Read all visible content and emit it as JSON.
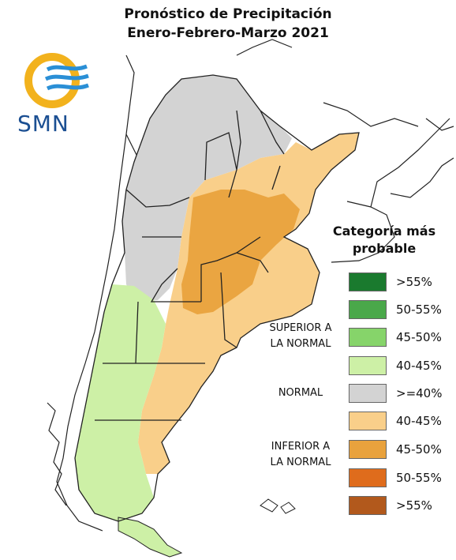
{
  "title": {
    "line1": "Pronóstico de Precipitación",
    "line2": "Enero-Febrero-Marzo 2021"
  },
  "logo": {
    "text": "SMN",
    "icon": "smn-sun-waves-logo",
    "colors": {
      "sun": "#f2b21d",
      "waves": "#2a8fd6",
      "text": "#1b4f92"
    }
  },
  "legend": {
    "title": "Categoría más probable",
    "items": [
      {
        "label": ">55%",
        "color": "#1a7a2e"
      },
      {
        "label": "50-55%",
        "color": "#4aa84a"
      },
      {
        "label": "45-50%",
        "color": "#86d46a"
      },
      {
        "label": "40-45%",
        "color": "#cdf0a6"
      },
      {
        "label": ">=40%",
        "color": "#d3d3d3"
      },
      {
        "label": "40-45%",
        "color": "#f9cf8a"
      },
      {
        "label": "45-50%",
        "color": "#e9a23d"
      },
      {
        "label": "50-55%",
        "color": "#df6c1c"
      },
      {
        "label": ">55%",
        "color": "#b2591c"
      }
    ],
    "groups": {
      "superior": "SUPERIOR A LA NORMAL",
      "superior_line1": "SUPERIOR A",
      "superior_line2": "LA NORMAL",
      "normal": "NORMAL",
      "inferior_line1": "INFERIOR A",
      "inferior_line2": "LA NORMAL"
    }
  },
  "map": {
    "region": "Argentina",
    "colors": {
      "border": "#222222",
      "normal": "#d3d3d3",
      "above": "#cdf0a6",
      "below_40_45": "#f9cf8a",
      "below_45_50": "#e9a23d"
    }
  }
}
